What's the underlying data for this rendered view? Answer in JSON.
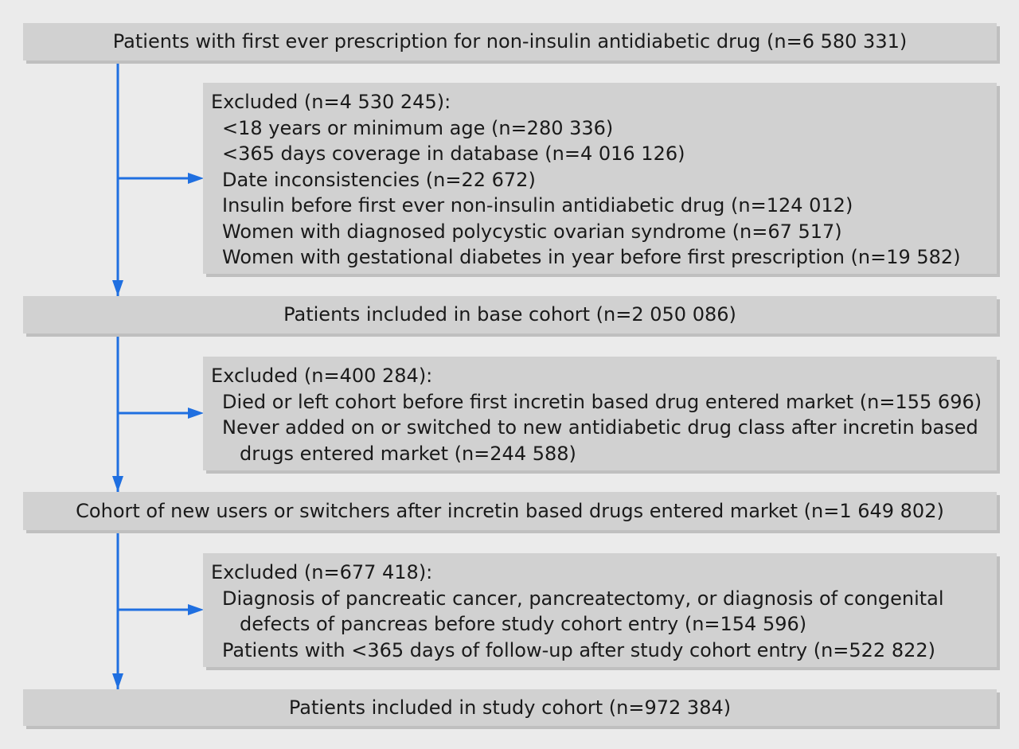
{
  "stages": [
    {
      "label": "Patients with first ever prescription for non-insulin antidiabetic drug (n=6 580 331)"
    },
    {
      "label": "Patients included in base cohort (n=2 050 086)"
    },
    {
      "label": "Cohort of new users or switchers after incretin based drugs entered market (n=1 649 802)"
    },
    {
      "label": "Patients included in study cohort (n=972 384)"
    }
  ],
  "exclusions": [
    {
      "title": "Excluded (n=4 530 245):",
      "items": [
        "<18 years or minimum age (n=280 336)",
        "<365 days coverage in database (n=4 016 126)",
        "Date inconsistencies (n=22 672)",
        "Insulin before first ever non-insulin antidiabetic drug (n=124 012)",
        "Women with diagnosed polycystic ovarian syndrome (n=67 517)",
        "Women with gestational diabetes in year before first prescription (n=19 582)"
      ]
    },
    {
      "title": "Excluded (n=400 284):",
      "items": [
        "Died or left cohort before first incretin based drug entered market (n=155 696)",
        "Never added on or switched to new antidiabetic drug class after incretin based drugs entered market (n=244 588)"
      ]
    },
    {
      "title": "Excluded (n=677 418):",
      "items": [
        "Diagnosis of pancreatic cancer, pancreatectomy, or diagnosis of congenital defects of pancreas before study cohort entry (n=154 596)",
        "Patients with <365 days of follow-up after study cohort entry (n=522 822)"
      ]
    }
  ],
  "colors": {
    "arrow": "#1f6fe0",
    "box": "#d1d1d1",
    "background": "#ebebeb"
  }
}
